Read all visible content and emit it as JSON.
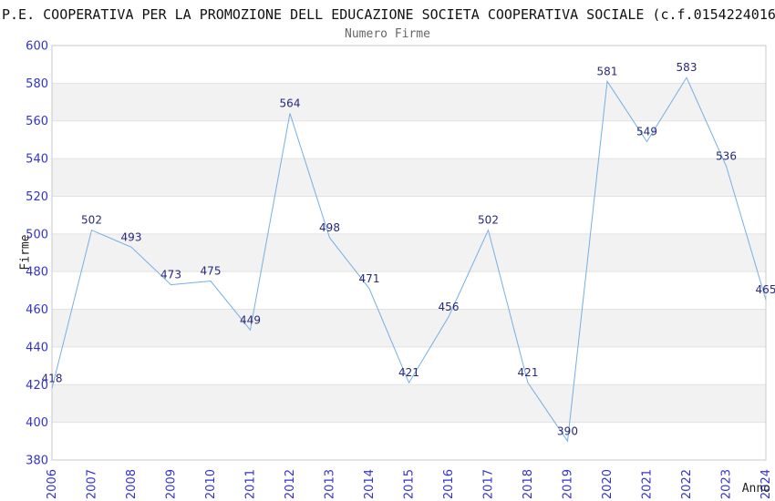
{
  "header": {
    "title": "P.E. COOPERATIVA PER LA PROMOZIONE DELL EDUCAZIONE SOCIETA COOPERATIVA SOCIALE (c.f.0154224016",
    "subtitle": "Numero Firme"
  },
  "colors": {
    "line": "#75afe3",
    "band": "#f2f2f2",
    "grid": "#e2e2e2",
    "plot_border": "#c9c9c9",
    "tick_label": "#3333cc",
    "data_label": "#28287d",
    "title": "#111111",
    "subtitle": "#666666",
    "axis_title": "#222222"
  },
  "chart_data": {
    "type": "line",
    "title": "Numero Firme",
    "xlabel": "Anno",
    "ylabel": "Firme",
    "categories": [
      "2006",
      "2007",
      "2008",
      "2009",
      "2010",
      "2011",
      "2012",
      "2013",
      "2014",
      "2015",
      "2016",
      "2017",
      "2018",
      "2019",
      "2020",
      "2021",
      "2022",
      "2023",
      "2024"
    ],
    "values": [
      418,
      502,
      493,
      473,
      475,
      449,
      564,
      498,
      471,
      421,
      456,
      502,
      421,
      390,
      581,
      549,
      583,
      536,
      465
    ],
    "ylim": [
      380,
      600
    ],
    "ytick_step": 20,
    "grid": true,
    "alternating_bands": true,
    "legend": "none",
    "data_labels": true
  }
}
